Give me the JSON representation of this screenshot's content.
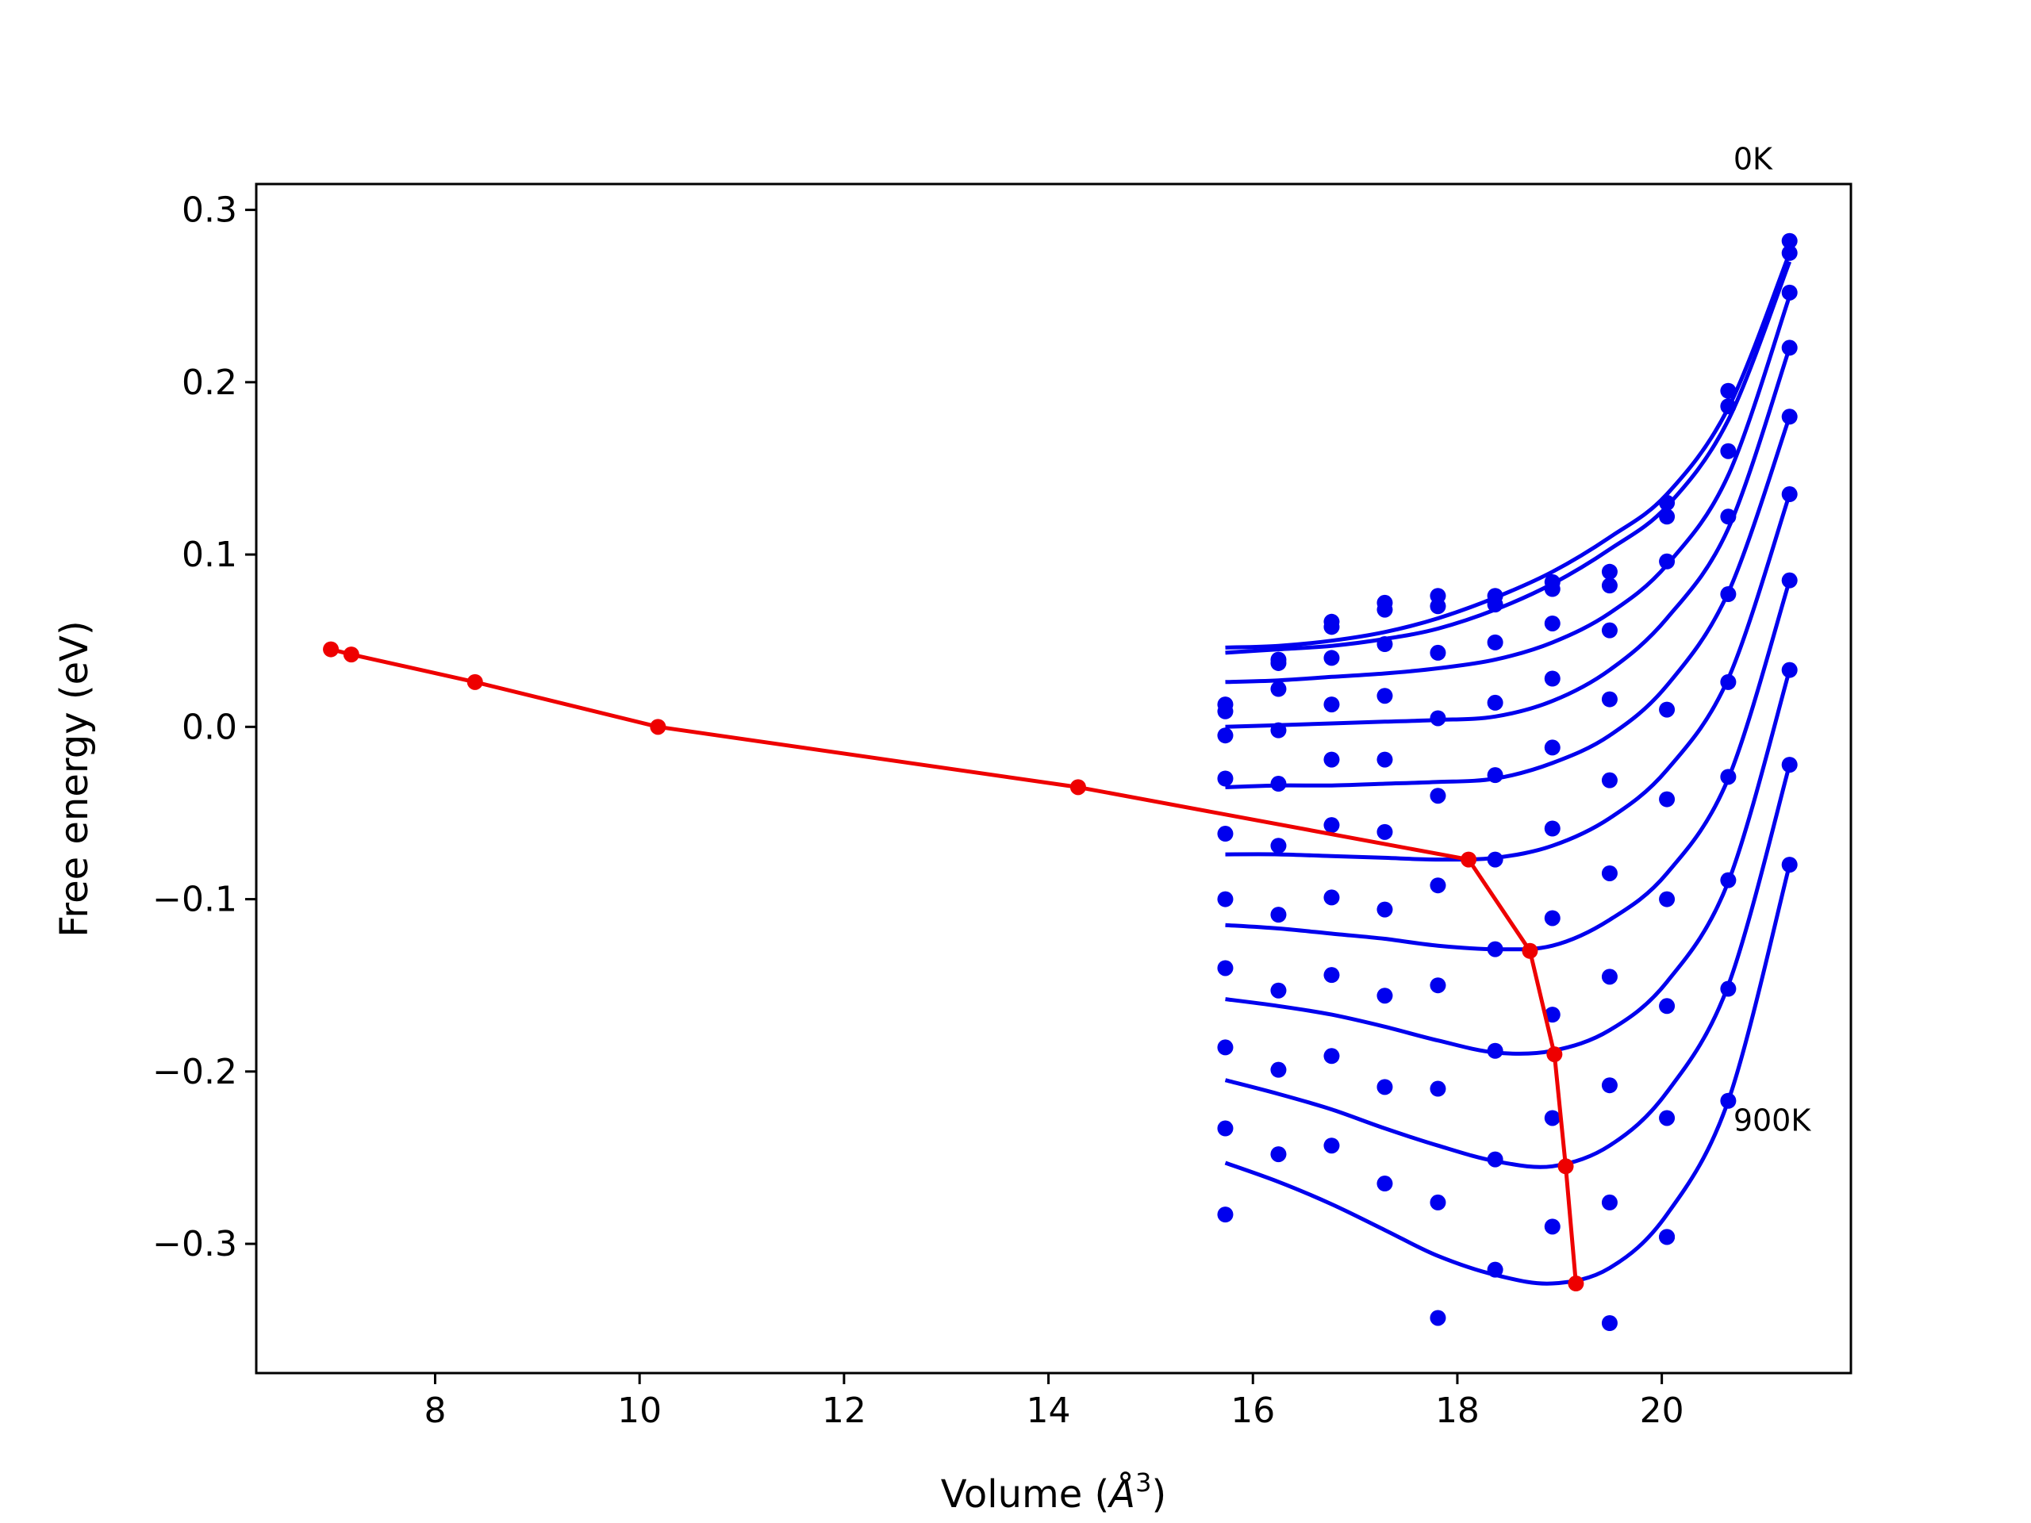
{
  "chart_data": {
    "type": "line",
    "title": "",
    "xlabel": "Volume (",
    "xlabel_symbol": "Å",
    "xlabel_exp": "3",
    "xlabel_close": ")",
    "ylabel": "Free energy (eV)",
    "xlim": [
      6.25,
      21.85
    ],
    "ylim": [
      -0.375,
      0.315
    ],
    "xticks": [
      8,
      10,
      12,
      14,
      16,
      18,
      20
    ],
    "yticks": [
      -0.3,
      -0.2,
      -0.1,
      0.0,
      0.1,
      0.2,
      0.3
    ],
    "ytick_labels": [
      "−0.3",
      "−0.2",
      "−0.1",
      "0.0",
      "0.1",
      "0.2",
      "0.3"
    ],
    "grid": false,
    "annotations": [
      {
        "text": "0K",
        "x": 20.7,
        "y": 0.33
      },
      {
        "text": "900K",
        "x": 20.7,
        "y": -0.228
      }
    ],
    "colors": {
      "isotherm": "#0000ee",
      "minimum_path": "#ee0000",
      "axes": "#000000"
    },
    "isotherm_volumes": [
      15.73,
      16.25,
      16.77,
      17.29,
      17.81,
      18.37,
      18.93,
      19.49,
      20.05,
      20.65,
      21.25
    ],
    "isotherms": [
      {
        "fit": [
          0.046,
          0.047,
          0.05,
          0.055,
          0.063,
          0.075,
          0.09,
          0.11,
          0.135,
          0.185,
          0.275
        ],
        "points": [
          0.013,
          0.039,
          0.061,
          0.072,
          0.076,
          0.076,
          0.084,
          0.09,
          0.13,
          0.195,
          0.282
        ]
      },
      {
        "fit": [
          0.043,
          0.045,
          0.047,
          0.051,
          0.057,
          0.068,
          0.083,
          0.103,
          0.128,
          0.178,
          0.27
        ],
        "points": [
          0.009,
          0.037,
          0.058,
          0.068,
          0.07,
          0.071,
          0.08,
          0.082,
          0.122,
          0.186,
          0.275
        ]
      },
      {
        "fit": [
          0.026,
          0.027,
          0.029,
          0.031,
          0.034,
          0.039,
          0.049,
          0.066,
          0.094,
          0.146,
          0.25
        ],
        "points": [
          -0.005,
          0.022,
          0.04,
          0.048,
          0.043,
          0.049,
          0.06,
          0.056,
          0.096,
          0.16,
          0.252
        ]
      },
      {
        "fit": [
          0.0,
          0.001,
          0.002,
          0.003,
          0.004,
          0.006,
          0.015,
          0.033,
          0.063,
          0.115,
          0.22
        ],
        "points": [
          -0.03,
          -0.002,
          0.013,
          0.018,
          0.005,
          0.014,
          0.028,
          0.016,
          0.01,
          0.122,
          0.22
        ]
      },
      {
        "fit": [
          -0.035,
          -0.034,
          -0.034,
          -0.033,
          -0.032,
          -0.03,
          -0.021,
          -0.005,
          0.024,
          0.078,
          0.18
        ],
        "points": [
          -0.062,
          -0.033,
          -0.019,
          -0.019,
          -0.04,
          -0.028,
          -0.012,
          -0.031,
          -0.042,
          0.077,
          0.18
        ]
      },
      {
        "fit": [
          -0.074,
          -0.074,
          -0.075,
          -0.076,
          -0.077,
          -0.076,
          -0.069,
          -0.053,
          -0.025,
          0.028,
          0.135
        ],
        "points": [
          -0.1,
          -0.069,
          -0.057,
          -0.061,
          -0.092,
          -0.077,
          -0.059,
          -0.085,
          -0.1,
          0.026,
          0.135
        ]
      },
      {
        "fit": [
          -0.115,
          -0.117,
          -0.12,
          -0.123,
          -0.127,
          -0.129,
          -0.127,
          -0.112,
          -0.085,
          -0.03,
          0.085
        ],
        "points": [
          -0.14,
          -0.109,
          -0.099,
          -0.106,
          -0.15,
          -0.129,
          -0.111,
          -0.145,
          -0.162,
          -0.029,
          0.085
        ]
      },
      {
        "fit": [
          -0.158,
          -0.162,
          -0.167,
          -0.174,
          -0.182,
          -0.189,
          -0.188,
          -0.176,
          -0.148,
          -0.09,
          0.033
        ],
        "points": [
          -0.186,
          -0.153,
          -0.144,
          -0.156,
          -0.21,
          -0.188,
          -0.167,
          -0.208,
          -0.227,
          -0.089,
          0.033
        ]
      },
      {
        "fit": [
          -0.205,
          -0.213,
          -0.222,
          -0.233,
          -0.243,
          -0.252,
          -0.255,
          -0.243,
          -0.212,
          -0.15,
          -0.022
        ],
        "points": [
          -0.233,
          -0.199,
          -0.191,
          -0.209,
          -0.276,
          -0.251,
          -0.227,
          -0.276,
          -0.296,
          -0.152,
          -0.022
        ]
      },
      {
        "fit": [
          -0.253,
          -0.264,
          -0.277,
          -0.292,
          -0.307,
          -0.318,
          -0.323,
          -0.314,
          -0.283,
          -0.217,
          -0.08
        ],
        "points": [
          -0.283,
          -0.248,
          -0.243,
          -0.265,
          -0.343,
          -0.315,
          -0.29,
          -0.346,
          -0.296,
          -0.217,
          -0.08
        ]
      }
    ],
    "minimum_path": {
      "name": "",
      "x": [
        6.98,
        7.18,
        8.39,
        10.18,
        14.29,
        18.11,
        18.71,
        18.95,
        19.06,
        19.16
      ],
      "y": [
        0.045,
        0.042,
        0.026,
        0.0,
        -0.035,
        -0.077,
        -0.13,
        -0.19,
        -0.255,
        -0.323
      ]
    }
  }
}
